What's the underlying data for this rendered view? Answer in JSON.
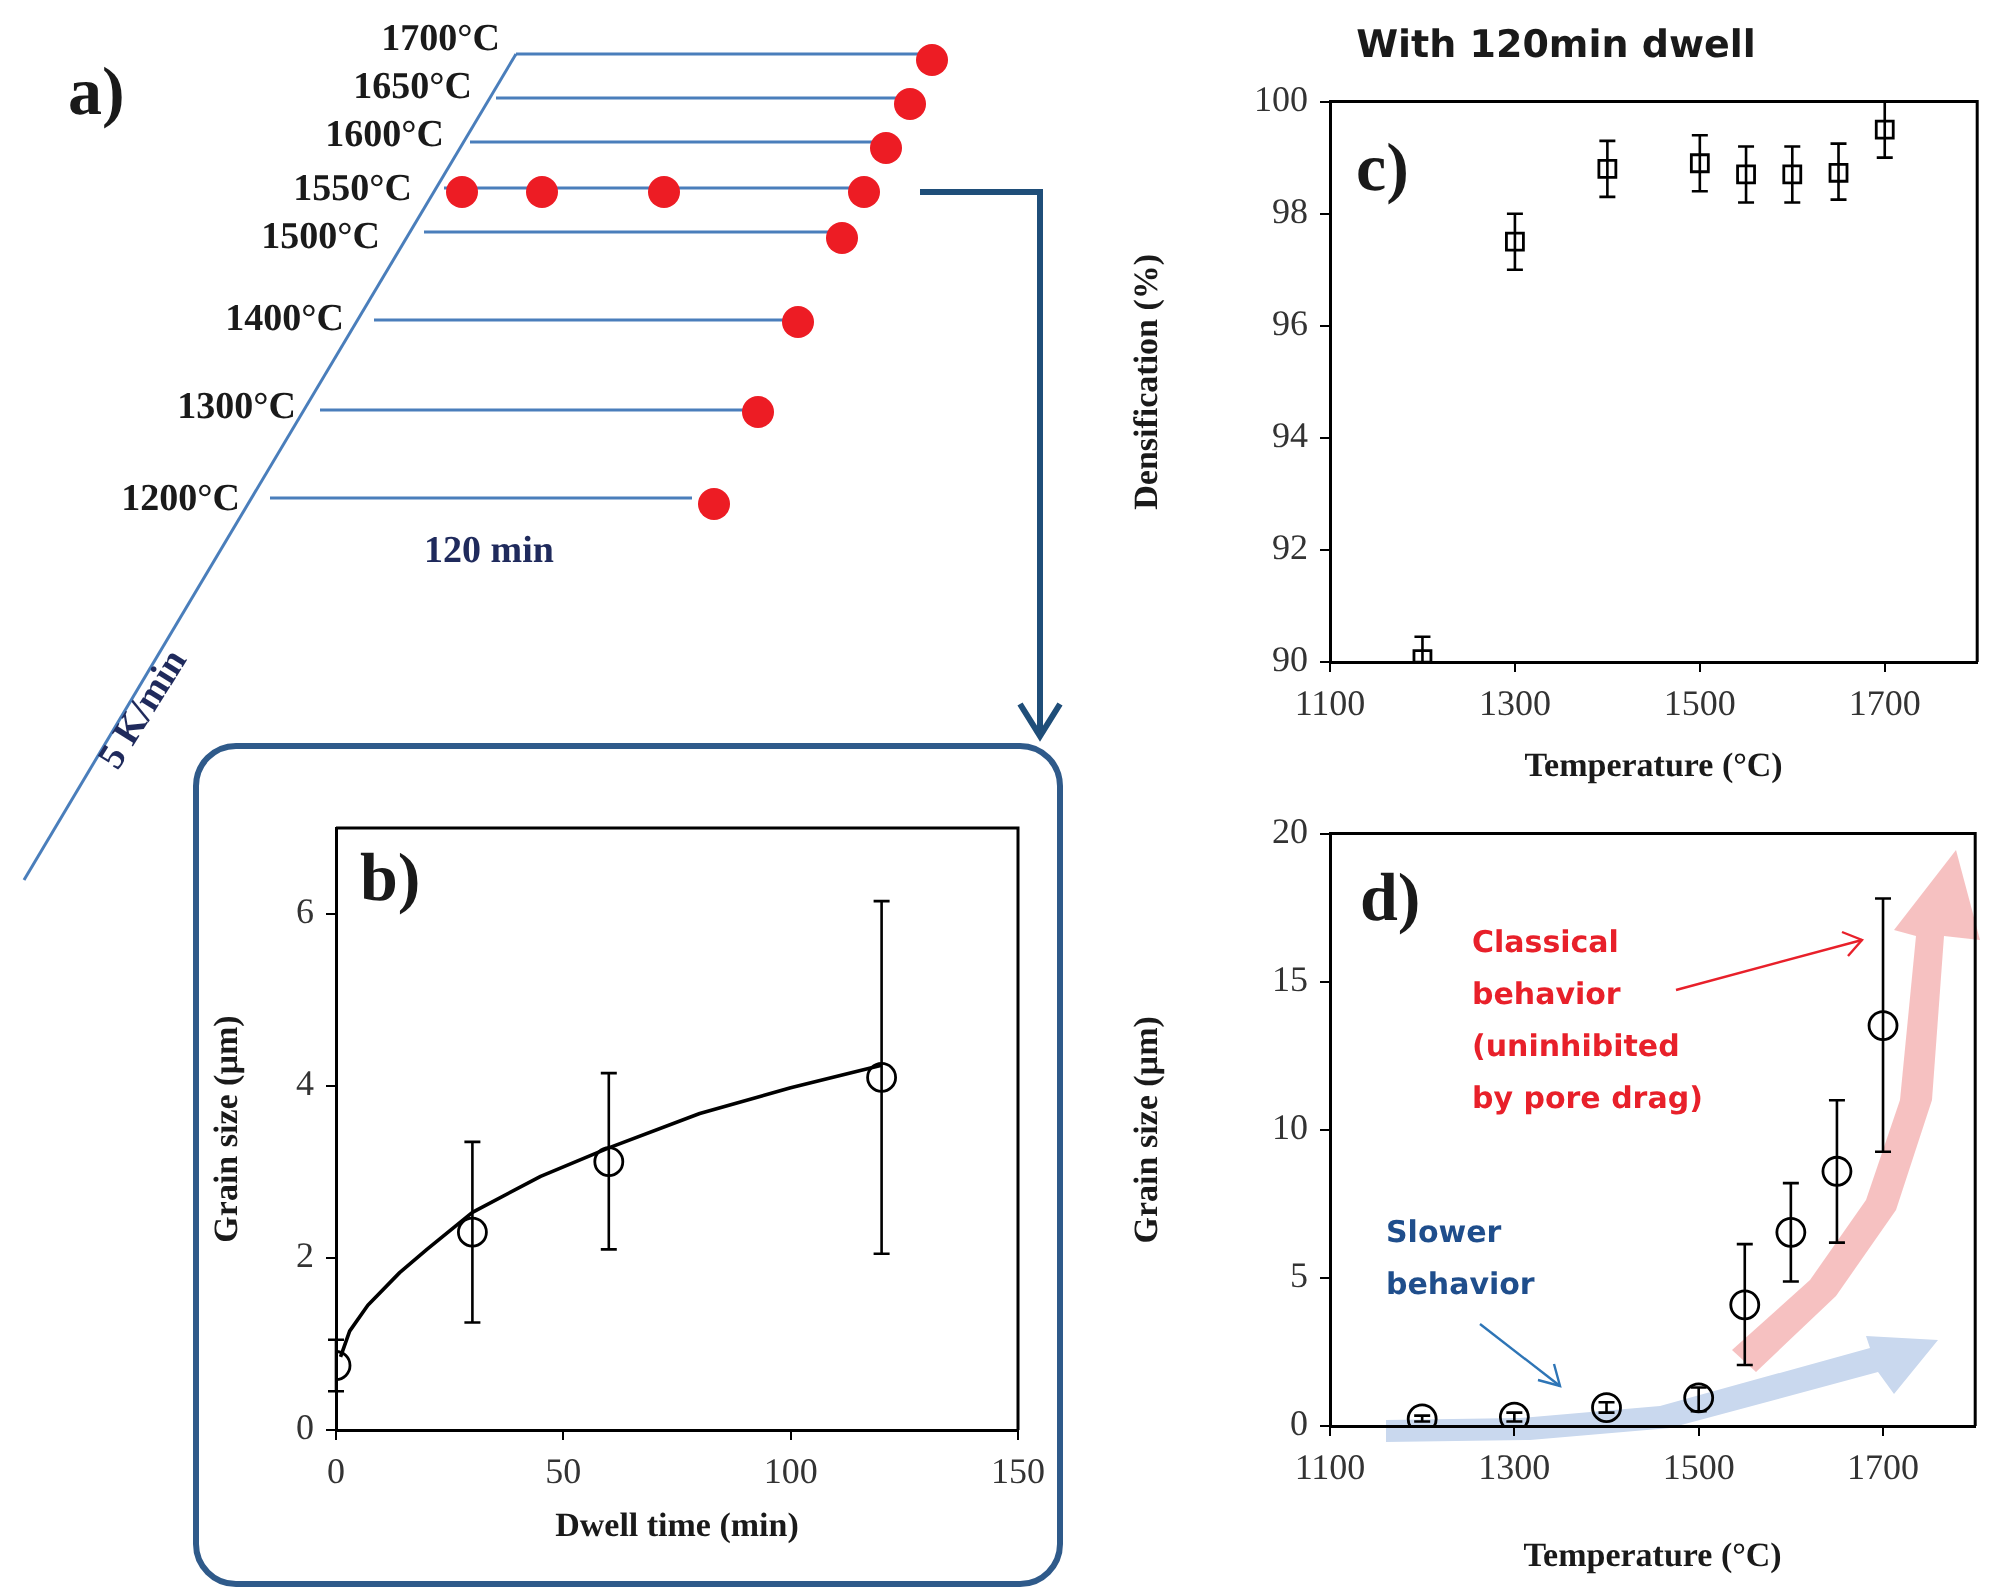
{
  "chart_data": [
    {
      "type": "other",
      "annotations": [
        "a)",
        "1700°C",
        "1650°C",
        "1600°C",
        "1550°C",
        "1500°C",
        "1400°C",
        "1300°C",
        "1200°C",
        "120 min",
        "5 K/min"
      ]
    },
    {
      "type": "scatter",
      "xlabel": "Dwell time (min)",
      "ylabel": "Grain size (µm)",
      "xlim": [
        0,
        150
      ],
      "xticks": [
        0,
        50,
        100,
        150
      ],
      "ylim": [
        0,
        7
      ],
      "yticks": [
        0,
        2,
        4,
        6
      ],
      "marker": "circle",
      "annotations": [
        "b)"
      ],
      "series": [
        {
          "type": "scatter",
          "color": "#000000",
          "x": [
            0,
            30,
            60,
            120
          ],
          "values": [
            0.75,
            2.3,
            3.12,
            4.1
          ],
          "errors": [
            [
              0.45,
              1.05
            ],
            [
              1.25,
              3.35
            ],
            [
              2.1,
              4.15
            ],
            [
              2.05,
              6.15
            ]
          ]
        },
        {
          "type": "line",
          "color": "#000000",
          "marker": "none",
          "x": [
            1,
            3,
            7,
            14,
            20,
            30,
            45,
            60,
            80,
            100,
            120
          ],
          "values": [
            0.85,
            1.15,
            1.45,
            1.83,
            2.1,
            2.53,
            2.95,
            3.28,
            3.68,
            3.98,
            4.24
          ]
        }
      ]
    },
    {
      "type": "scatter",
      "title": "With 120min dwell",
      "xlabel": "Temperature (°C)",
      "ylabel": "Densification (%)",
      "xlim": [
        1100,
        1800
      ],
      "xticks": [
        1100,
        1300,
        1500,
        1700
      ],
      "ylim": [
        90,
        100
      ],
      "yticks": [
        90,
        92,
        94,
        96,
        98,
        100
      ],
      "marker": "square",
      "annotations": [
        "c)"
      ],
      "series": [
        {
          "color": "#000000",
          "x": [
            1200,
            1300,
            1400,
            1500,
            1550,
            1600,
            1650,
            1700
          ],
          "values": [
            90.05,
            97.5,
            98.8,
            98.9,
            98.7,
            98.7,
            98.73,
            99.5
          ],
          "errors": [
            [
              90.0,
              90.45
            ],
            [
              97.0,
              98.0
            ],
            [
              98.3,
              99.3
            ],
            [
              98.4,
              99.4
            ],
            [
              98.2,
              99.2
            ],
            [
              98.2,
              99.2
            ],
            [
              98.25,
              99.25
            ],
            [
              99.0,
              100.0
            ]
          ]
        }
      ]
    },
    {
      "type": "scatter",
      "xlabel": "Temperature (°C)",
      "ylabel": "Grain size (µm)",
      "xlim": [
        1100,
        1800
      ],
      "xticks": [
        1100,
        1300,
        1500,
        1700
      ],
      "ylim": [
        0,
        20
      ],
      "yticks": [
        0,
        5,
        10,
        15,
        20
      ],
      "marker": "circle",
      "annotations": [
        "d)",
        "Classical behavior (uninhibited by pore drag)",
        "Slower behavior"
      ],
      "series": [
        {
          "color": "#000000",
          "x": [
            1200,
            1300,
            1400,
            1500,
            1550,
            1600,
            1650,
            1700
          ],
          "values": [
            0.24,
            0.3,
            0.62,
            0.95,
            4.09,
            6.54,
            8.6,
            13.52
          ],
          "errors": [
            [
              0.15,
              0.35
            ],
            [
              0.15,
              0.45
            ],
            [
              0.45,
              0.8
            ],
            [
              0.5,
              1.3
            ],
            [
              2.06,
              6.14
            ],
            [
              4.88,
              8.2
            ],
            [
              6.19,
              11.0
            ],
            [
              9.26,
              17.81
            ]
          ]
        }
      ]
    }
  ]
}
